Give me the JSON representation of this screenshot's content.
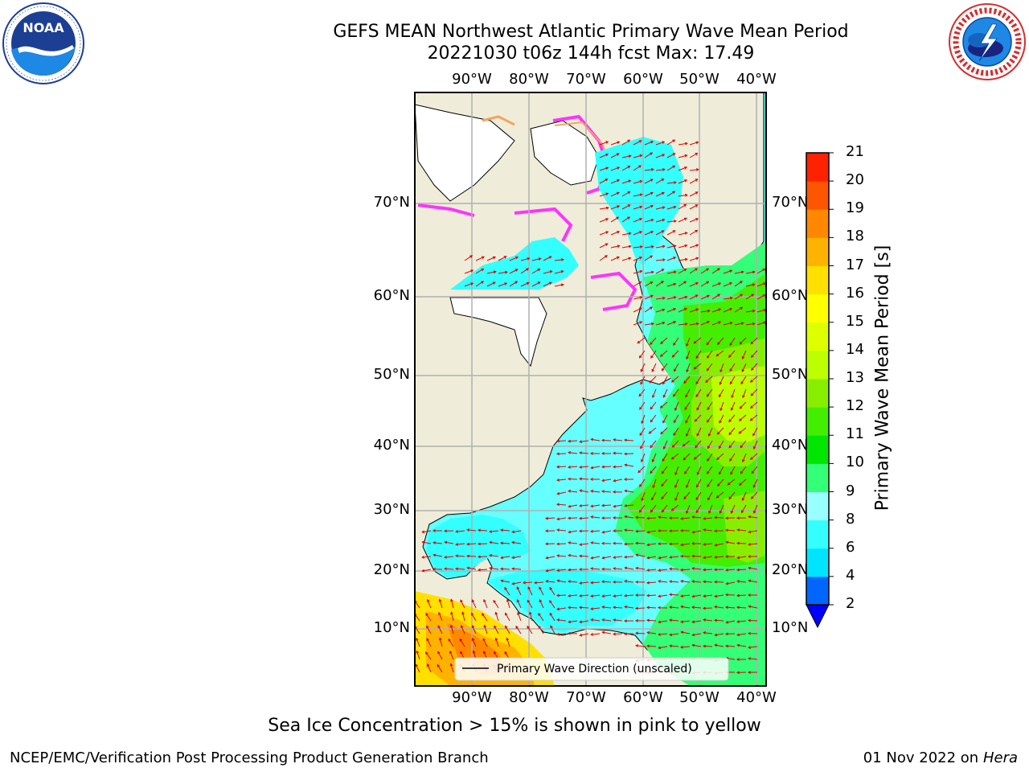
{
  "title": {
    "line1": "GEFS MEAN Northwest Atlantic Primary Wave Mean Period",
    "line2": "20221030 t06z 144h fcst   Max: 17.49"
  },
  "logos": {
    "left": {
      "icon": "noaa-logo",
      "text": "NOAA",
      "ring_text": "NATIONAL OCEANIC AND ATMOSPHERIC ADMINISTRATION · U.S. DEPARTMENT OF COMMERCE"
    },
    "right": {
      "icon": "nws-logo",
      "ring_text": "NATIONAL WEATHER SERVICE"
    }
  },
  "map": {
    "lon_ticks": [
      "90°W",
      "80°W",
      "70°W",
      "60°W",
      "50°W",
      "40°W"
    ],
    "lat_ticks": [
      "70°N",
      "60°N",
      "50°N",
      "40°N",
      "30°N",
      "20°N",
      "10°N"
    ],
    "legend": "Primary Wave Direction (unscaled)",
    "colors": {
      "land": "#efedd9",
      "ice_white": "#ffffff",
      "ice_pink": "#ff33ff",
      "ice_orange": "#f4a460",
      "grid": "#b0b0b0",
      "arrow": "#e00000"
    }
  },
  "colorbar": {
    "label": "Primary Wave Mean Period [s]",
    "ticks": [
      "2",
      "4",
      "6",
      "8",
      "9",
      "10",
      "11",
      "12",
      "13",
      "14",
      "15",
      "16",
      "17",
      "18",
      "19",
      "20",
      "21"
    ],
    "colors": [
      "#0066ff",
      "#00e5ff",
      "#33ffff",
      "#99ffff",
      "#33ff77",
      "#00e600",
      "#44ee00",
      "#88ee00",
      "#bbff00",
      "#ddff00",
      "#ffff00",
      "#ffe000",
      "#ffb300",
      "#ff8800",
      "#ff5500",
      "#ff2200"
    ],
    "extend_color": "#0000ff"
  },
  "footnote": "Sea Ice Concentration > 15% is shown in pink to yellow",
  "footer": {
    "left": "NCEP/EMC/Verification Post Processing Product Generation Branch",
    "right_date": "01 Nov 2022 on",
    "right_host": "Hera"
  }
}
